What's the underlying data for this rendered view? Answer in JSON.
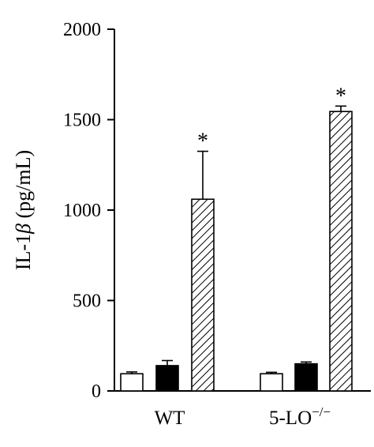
{
  "chart_data": {
    "type": "bar",
    "categories": [
      "WT",
      "5-LO"
    ],
    "category_superscript": [
      "",
      "−/−"
    ],
    "ylabel_prefix": "IL-1",
    "ylabel_symbol": "β",
    "ylabel_unit": " (pg/mL)",
    "ylim": [
      0,
      2000
    ],
    "yticks": [
      "0",
      "500",
      "1000",
      "1500",
      "2000"
    ],
    "grid": false,
    "legend": "none",
    "series": [
      {
        "fill": "open",
        "values": [
          95,
          95
        ],
        "errors": [
          10,
          8
        ],
        "significance": [
          "",
          ""
        ]
      },
      {
        "fill": "solid",
        "values": [
          140,
          150
        ],
        "errors": [
          28,
          10
        ],
        "significance": [
          "",
          ""
        ]
      },
      {
        "fill": "hatched",
        "values": [
          1060,
          1545
        ],
        "errors": [
          265,
          30
        ],
        "significance": [
          "*",
          "*"
        ]
      }
    ],
    "colors": {
      "axis": "#000000",
      "solid": "#000000",
      "open": "#ffffff"
    }
  }
}
